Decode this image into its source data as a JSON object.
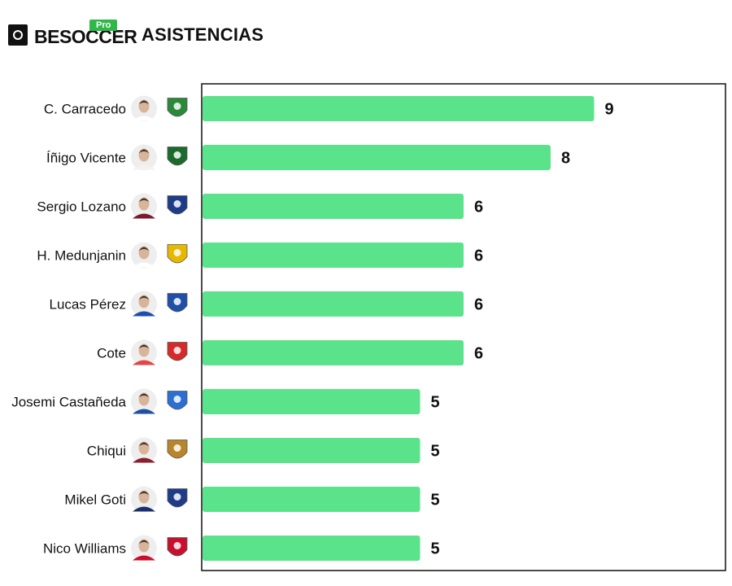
{
  "header": {
    "logo_text": "BESOCCER",
    "logo_badge": "Pro",
    "title": "ASISTENCIAS"
  },
  "colors": {
    "bar": "#5be38b",
    "frame": "#111111",
    "text": "#111111"
  },
  "chart_data": {
    "type": "bar",
    "orientation": "horizontal",
    "title": "ASISTENCIAS",
    "xlim": [
      0,
      10
    ],
    "categories": [
      "C. Carracedo",
      "Íñigo Vicente",
      "Sergio Lozano",
      "H. Medunjanin",
      "Lucas Pérez",
      "Cote",
      "Josemi Castañeda",
      "Chiqui",
      "Mikel Goti",
      "Nico Williams"
    ],
    "values": [
      9,
      8,
      6,
      6,
      6,
      6,
      5,
      5,
      5,
      5
    ],
    "icons": [
      {
        "player": "player-photo-icon",
        "club": "club-crest-icon",
        "shirt": "#ffffff",
        "crest": "#2a8a3a"
      },
      {
        "player": "player-photo-icon",
        "club": "club-crest-icon",
        "shirt": "#f2f2f2",
        "crest": "#1b6b2d"
      },
      {
        "player": "player-photo-icon",
        "club": "club-crest-icon",
        "shirt": "#7a1a2e",
        "crest": "#1f3c88"
      },
      {
        "player": "player-photo-icon",
        "club": "club-crest-icon",
        "shirt": "#ffffff",
        "crest": "#e6b800"
      },
      {
        "player": "player-photo-icon",
        "club": "club-crest-icon",
        "shirt": "#1f4fa8",
        "crest": "#1f4fa8"
      },
      {
        "player": "player-photo-icon",
        "club": "club-crest-icon",
        "shirt": "#e44545",
        "crest": "#d62a2a"
      },
      {
        "player": "player-photo-icon",
        "club": "club-crest-icon",
        "shirt": "#2250a0",
        "crest": "#2a6fd1"
      },
      {
        "player": "player-photo-icon",
        "club": "club-crest-icon",
        "shirt": "#8a1f2e",
        "crest": "#b8862a"
      },
      {
        "player": "player-photo-icon",
        "club": "club-crest-icon",
        "shirt": "#1a2f6b",
        "crest": "#1f3c88"
      },
      {
        "player": "player-photo-icon",
        "club": "club-crest-icon",
        "shirt": "#c8102e",
        "crest": "#c8102e"
      }
    ]
  }
}
